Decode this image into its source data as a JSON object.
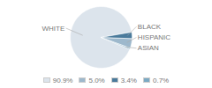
{
  "chart_data": {
    "type": "pie",
    "categories": [
      "WHITE",
      "ASIAN",
      "HISPANIC",
      "BLACK"
    ],
    "values": [
      90.9,
      0.7,
      5.0,
      3.4
    ],
    "value_labels": [
      "90.9%",
      "0.7%",
      "5.0%",
      "3.4%"
    ],
    "colors": [
      "#dce4ec",
      "#7baac4",
      "#9db8cc",
      "#4a7a9b"
    ],
    "legend": "bottom"
  }
}
